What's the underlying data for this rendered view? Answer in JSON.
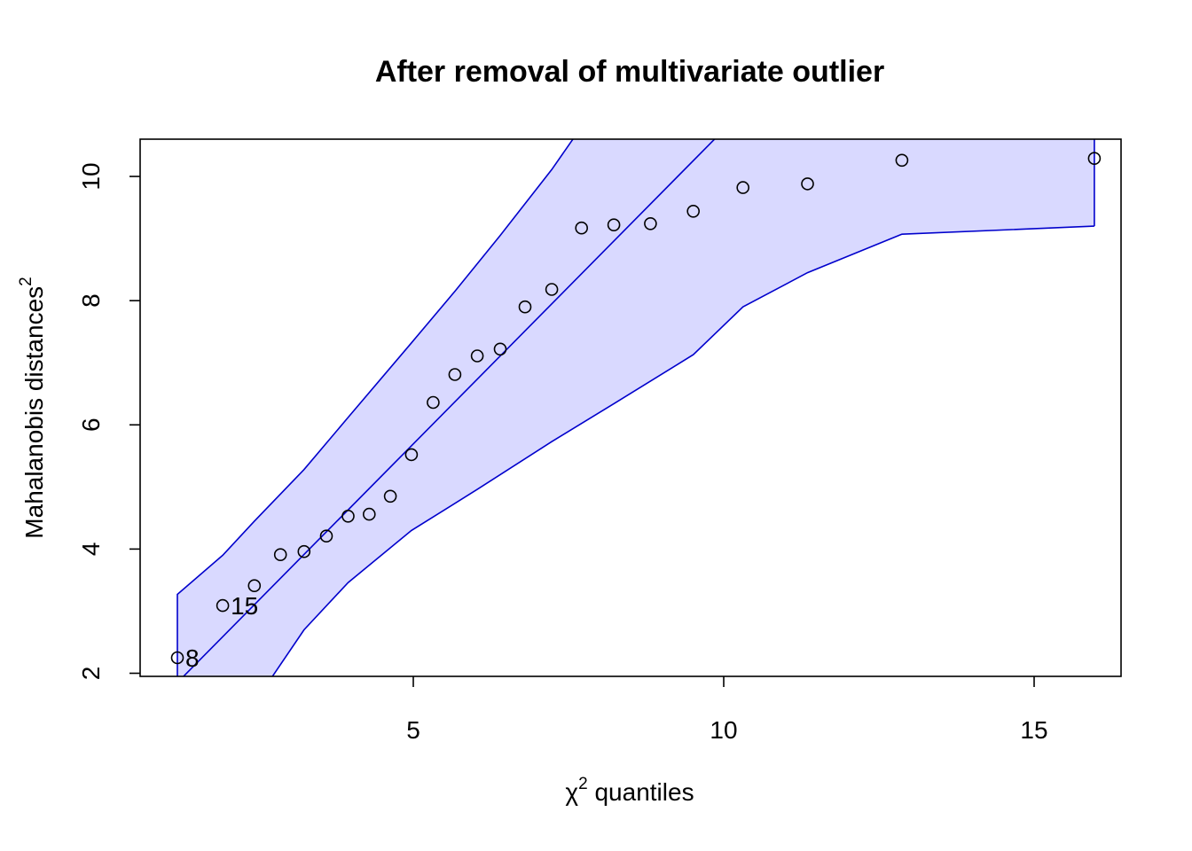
{
  "chart_data": {
    "type": "scatter",
    "title": "After removal of multivariate outlier",
    "xlabel": {
      "base": "χ",
      "sup": "2",
      "rest": " quantiles"
    },
    "ylabel": {
      "text": "Mahalanobis distances",
      "sup": "2"
    },
    "xlim": [
      0.6,
      16.4
    ],
    "ylim": [
      1.95,
      10.6
    ],
    "x_ticks": [
      5,
      10,
      15
    ],
    "y_ticks": [
      2,
      4,
      6,
      8,
      10
    ],
    "grid": false,
    "colors": {
      "band_fill": "#d9d9ff",
      "band_line": "#0000cc",
      "points": "#000000"
    },
    "points": [
      {
        "x": 1.2,
        "y": 2.25
      },
      {
        "x": 1.93,
        "y": 3.09
      },
      {
        "x": 2.44,
        "y": 3.41
      },
      {
        "x": 2.86,
        "y": 3.91
      },
      {
        "x": 3.24,
        "y": 3.96
      },
      {
        "x": 3.6,
        "y": 4.21
      },
      {
        "x": 3.95,
        "y": 4.53
      },
      {
        "x": 4.29,
        "y": 4.56
      },
      {
        "x": 4.63,
        "y": 4.85
      },
      {
        "x": 4.97,
        "y": 5.52
      },
      {
        "x": 5.32,
        "y": 6.36
      },
      {
        "x": 5.67,
        "y": 6.81
      },
      {
        "x": 6.03,
        "y": 7.11
      },
      {
        "x": 6.4,
        "y": 7.22
      },
      {
        "x": 6.8,
        "y": 7.9
      },
      {
        "x": 7.23,
        "y": 8.18
      },
      {
        "x": 7.71,
        "y": 9.17
      },
      {
        "x": 8.23,
        "y": 9.22
      },
      {
        "x": 8.82,
        "y": 9.24
      },
      {
        "x": 9.51,
        "y": 9.44
      },
      {
        "x": 10.31,
        "y": 9.82
      },
      {
        "x": 11.35,
        "y": 9.88
      },
      {
        "x": 12.87,
        "y": 10.26
      },
      {
        "x": 15.97,
        "y": 10.29
      }
    ],
    "point_labels": [
      {
        "text": "8",
        "x": 1.2,
        "y": 2.25
      },
      {
        "text": "15",
        "x": 1.93,
        "y": 3.09
      }
    ],
    "reference_line": [
      [
        1.2,
        1.85
      ],
      [
        10.05,
        10.8
      ]
    ],
    "band_upper": [
      [
        1.2,
        3.27
      ],
      [
        1.93,
        3.9
      ],
      [
        2.44,
        4.45
      ],
      [
        3.24,
        5.28
      ],
      [
        3.95,
        6.12
      ],
      [
        4.97,
        7.32
      ],
      [
        5.67,
        8.15
      ],
      [
        6.4,
        9.05
      ],
      [
        7.23,
        10.11
      ],
      [
        7.71,
        10.8
      ]
    ],
    "band_lower": [
      [
        1.2,
        1.4
      ],
      [
        2.44,
        1.52
      ],
      [
        3.24,
        2.7
      ],
      [
        3.95,
        3.46
      ],
      [
        4.97,
        4.3
      ],
      [
        6.03,
        4.96
      ],
      [
        7.23,
        5.73
      ],
      [
        8.23,
        6.34
      ],
      [
        9.51,
        7.13
      ],
      [
        10.31,
        7.9
      ],
      [
        11.35,
        8.45
      ],
      [
        12.87,
        9.07
      ],
      [
        15.97,
        9.2
      ]
    ],
    "band_right_edge": [
      [
        15.97,
        9.2
      ],
      [
        15.97,
        10.8
      ]
    ]
  }
}
